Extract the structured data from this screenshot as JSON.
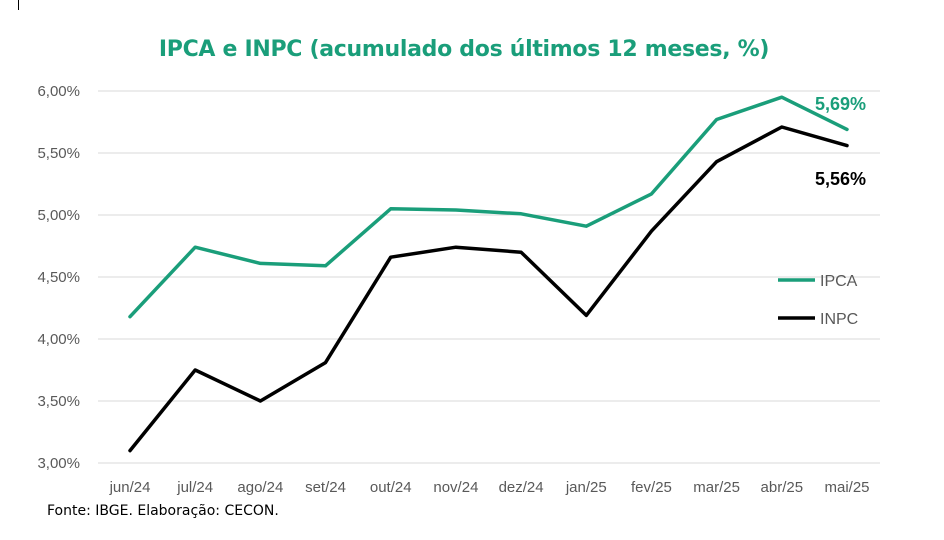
{
  "colors": {
    "ipca": "#1a9e7a",
    "inpc": "#000000",
    "grid": "#d9d9d9",
    "title": "#1a9e7a"
  },
  "source": "Fonte: IBGE. Elaboração: CECON.",
  "chart_data": {
    "type": "line",
    "title": "IPCA e INPC (acumulado  dos últimos 12 meses, %)",
    "xlabel": "",
    "ylabel": "",
    "categories": [
      "jun/24",
      "jul/24",
      "ago/24",
      "set/24",
      "out/24",
      "nov/24",
      "dez/24",
      "jan/25",
      "fev/25",
      "mar/25",
      "abr/25",
      "mai/25"
    ],
    "yticks": [
      3.0,
      3.5,
      4.0,
      4.5,
      5.0,
      5.5,
      6.0
    ],
    "ytick_labels": [
      "3,00%",
      "3,50%",
      "4,00%",
      "4,50%",
      "5,00%",
      "5,50%",
      "6,00%"
    ],
    "ylim": [
      3.0,
      6.0
    ],
    "grid": true,
    "legend_position": "right",
    "series": [
      {
        "name": "IPCA",
        "color": "#1a9e7a",
        "values": [
          4.18,
          4.74,
          4.61,
          4.59,
          5.05,
          5.04,
          5.01,
          4.91,
          5.17,
          5.77,
          5.95,
          5.69
        ],
        "end_label": "5,69%"
      },
      {
        "name": "INPC",
        "color": "#000000",
        "values": [
          3.1,
          3.75,
          3.5,
          3.81,
          4.66,
          4.74,
          4.7,
          4.19,
          4.87,
          5.43,
          5.71,
          5.56
        ],
        "end_label": "5,56%"
      }
    ]
  }
}
